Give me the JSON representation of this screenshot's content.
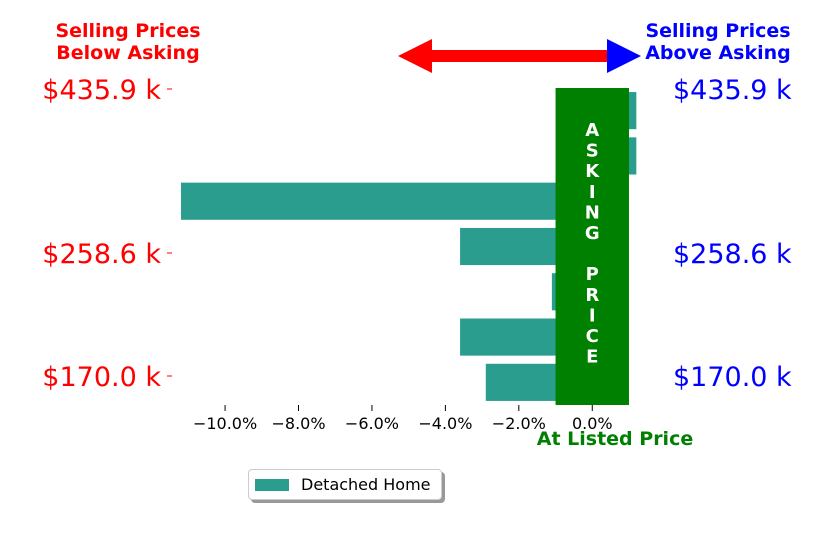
{
  "header": {
    "left_line1": "Selling Prices",
    "left_line2": "Below Asking",
    "right_line1": "Selling Prices",
    "right_line2": "Above Asking",
    "left_color": "#ff0000",
    "right_color": "#0000ff"
  },
  "asking_band": {
    "letters": [
      "A",
      "S",
      "K",
      "I",
      "N",
      "G",
      "",
      "P",
      "R",
      "I",
      "C",
      "E"
    ],
    "color": "#008000",
    "caption": "At Listed Price"
  },
  "price_labels": [
    "$435.9 k",
    "$258.6 k",
    "$170.0 k"
  ],
  "legend": {
    "label": "Detached Home",
    "color": "#2a9d8f"
  },
  "chart_data": {
    "type": "bar",
    "orientation": "horizontal",
    "series": [
      {
        "name": "Detached Home",
        "values": [
          1.2,
          1.2,
          -11.2,
          -3.6,
          -1.1,
          -3.6,
          -2.9
        ]
      }
    ],
    "xlim": [
      -11.5,
      1.3
    ],
    "xticks": [
      -10,
      -8,
      -6,
      -4,
      -2,
      0
    ],
    "xtick_labels": [
      "−10.0%",
      "−8.0%",
      "−6.0%",
      "−4.0%",
      "−2.0%",
      "0.0%"
    ],
    "bar_color": "#2a9d8f"
  }
}
